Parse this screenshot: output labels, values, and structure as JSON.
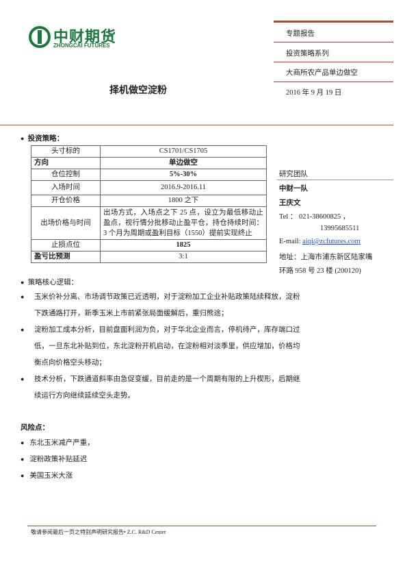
{
  "header": {
    "logo_cn": "中财期货",
    "logo_en": "ZHONGCAI FUTURES",
    "tags": [
      "专题报告",
      "投资策略系列",
      "大商所农产品单边做空",
      "2016 年 9 月 19 日"
    ]
  },
  "title": "择机做空淀粉",
  "strategy": {
    "heading": "投资策略：",
    "rows": [
      [
        "头寸标的",
        "CS1701/CS1705"
      ],
      [
        "方向",
        "单边做空"
      ],
      [
        "仓位控制",
        "5%-30%"
      ],
      [
        "入场时间",
        "2016.9-2016.11"
      ],
      [
        "开仓价格",
        "1800 之下"
      ],
      [
        "出场价格与时间",
        "出场方式，入场点之下 25 点，设立为最低移动止盈点，视行情分批移动止盈平仓，持仓持续时间：3 个月为周期或盈利目标（1550）提前实现终止"
      ],
      [
        "止损点位",
        "1825"
      ],
      [
        "盈亏比预测",
        "3:1"
      ]
    ]
  },
  "team": {
    "heading": "研究团队",
    "group": "中财一队",
    "name": "王庆文",
    "tel": "Tel ： 021-38600825 ，",
    "mobile": "13995685511",
    "email_label": "E-mail:",
    "email": "aiqi@zcfutures.com",
    "address": [
      "地址：上海市浦东新区陆家嘴",
      "环路 958 号 23 楼 (200120)"
    ]
  },
  "logic": {
    "heading": "策略核心逻辑：",
    "points": [
      "玉米价补分离、市场调节政策已近透明，对于淀粉加工企业补贴政策陆续释放，淀粉下跌通路打开，新季玉米上市前紧张局面缓解后，重归熊途；",
      "淀粉加工成本分析，目前盘面利润为负，对于华北企业而言，停机待产，库存端口过低，一旦东北补贴到位，东北淀粉开机启动，在淀粉相对淡季里，供应增加，价格均衡点向价格空头移动；",
      "技术分析，下跌通道斜率由急促变缓，目前走的是一个周期有限的上升楔形，后期继续运行方向继续延续空头走势。"
    ]
  },
  "risks": {
    "heading": "风险点：",
    "points": [
      "东北玉米减产严重，",
      "淀粉政策补贴延迟",
      "美国玉米大涨"
    ]
  },
  "footer": "敬请参阅最后一页之特别声明研究报告• Z.C. R&D Center"
}
